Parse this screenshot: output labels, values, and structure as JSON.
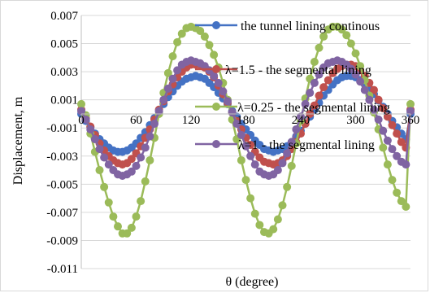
{
  "chart_data": {
    "type": "line",
    "xlabel": "θ (degree)",
    "ylabel": "Displacement, m",
    "xlim": [
      0,
      360
    ],
    "ylim": [
      -0.011,
      0.007
    ],
    "x_ticks": [
      "0",
      "60",
      "120",
      "180",
      "240",
      "300",
      "360"
    ],
    "y_ticks": [
      "0.007",
      "0.005",
      "0.003",
      "0.001",
      "-0.001",
      "-0.003",
      "-0.005",
      "-0.007",
      "-0.009",
      "-0.011"
    ],
    "grid": "horizontal",
    "x_step": 5,
    "series": [
      {
        "name": "the tunnel lining continous",
        "color": "#4472c4",
        "values": [
          0.0,
          -0.0005,
          -0.00095,
          -0.0014,
          -0.0018,
          -0.0021,
          -0.0024,
          -0.0026,
          -0.0027,
          -0.0027,
          -0.0026,
          -0.0024,
          -0.0021,
          -0.0017,
          -0.0013,
          -0.0008,
          -0.0003,
          0.0002,
          0.0007,
          0.0012,
          0.0016,
          0.002,
          0.0023,
          0.0025,
          0.0026,
          0.0027,
          0.0026,
          0.0025,
          0.0022,
          0.0019,
          0.0015,
          0.0011,
          0.0007,
          0.0002,
          -0.0002,
          -0.0007,
          -0.0011,
          -0.0015,
          -0.0019,
          -0.0022,
          -0.0025,
          -0.0026,
          -0.0027,
          -0.0026,
          -0.0025,
          -0.0023,
          -0.002,
          -0.0016,
          -0.0012,
          -0.0007,
          -0.0002,
          0.0003,
          0.0008,
          0.0013,
          0.0017,
          0.0021,
          0.0024,
          0.0026,
          0.0027,
          0.0027,
          0.0026,
          0.0024,
          0.0021,
          0.0018,
          0.0014,
          0.00095,
          0.0005,
          0.0,
          -0.0005,
          -0.00095,
          -0.0014,
          -0.0018,
          0.0
        ]
      },
      {
        "name": "λ=1.5 - the segmental lining",
        "color": "#c0504d",
        "values": [
          0.0003,
          -0.0003,
          -0.0009,
          -0.0015,
          -0.0021,
          -0.0026,
          -0.003,
          -0.0033,
          -0.0035,
          -0.0036,
          -0.0035,
          -0.0032,
          -0.0028,
          -0.0023,
          -0.0017,
          -0.0011,
          -0.0004,
          0.0003,
          0.0009,
          0.0016,
          0.0021,
          0.0026,
          0.003,
          0.0033,
          0.0035,
          0.0035,
          0.0035,
          0.0033,
          0.003,
          0.0026,
          0.002,
          0.0014,
          0.0008,
          0.0001,
          -0.0005,
          -0.0011,
          -0.0017,
          -0.0022,
          -0.0027,
          -0.0031,
          -0.0034,
          -0.0035,
          -0.0036,
          -0.0035,
          -0.0033,
          -0.003,
          -0.0025,
          -0.002,
          -0.0014,
          -0.0007,
          0.0,
          0.0006,
          0.0013,
          0.0019,
          0.0024,
          0.0029,
          0.0032,
          0.0034,
          0.0035,
          0.0035,
          0.0034,
          0.0031,
          0.0027,
          0.0022,
          0.0017,
          0.001,
          0.0004,
          -0.0002,
          -0.0008,
          -0.0014,
          -0.002,
          -0.0024,
          0.0003
        ]
      },
      {
        "name": "λ=0.25 - the segmental lining",
        "color": "#9bbb59",
        "values": [
          0.0007,
          -0.0001,
          -0.0014,
          -0.0027,
          -0.004,
          -0.0052,
          -0.0063,
          -0.0073,
          -0.008,
          -0.0085,
          -0.0085,
          -0.0081,
          -0.0073,
          -0.0062,
          -0.0048,
          -0.0033,
          -0.0017,
          0.0,
          0.0015,
          0.0029,
          0.0041,
          0.0051,
          0.0057,
          0.0061,
          0.0062,
          0.0061,
          0.0059,
          0.0055,
          0.0049,
          0.0042,
          0.0033,
          0.0022,
          0.001,
          -0.0004,
          -0.0018,
          -0.0033,
          -0.0047,
          -0.006,
          -0.0071,
          -0.0079,
          -0.0084,
          -0.0085,
          -0.0082,
          -0.0075,
          -0.0065,
          -0.0052,
          -0.0037,
          -0.0021,
          -0.0005,
          0.0011,
          0.0025,
          0.0037,
          0.0047,
          0.0055,
          0.006,
          0.0062,
          0.0062,
          0.006,
          0.0056,
          0.005,
          0.0043,
          0.0034,
          0.0024,
          0.0013,
          0.0001,
          -0.0011,
          -0.0024,
          -0.0036,
          -0.0047,
          -0.0056,
          -0.0062,
          -0.0066,
          0.0007
        ]
      },
      {
        "name": "λ=1 - the segmental lining",
        "color": "#8064a2",
        "values": [
          0.0002,
          -0.0004,
          -0.0011,
          -0.0018,
          -0.0025,
          -0.0031,
          -0.0036,
          -0.004,
          -0.0043,
          -0.0044,
          -0.0043,
          -0.0041,
          -0.0037,
          -0.0031,
          -0.0024,
          -0.0016,
          -0.0007,
          0.0002,
          0.001,
          0.0018,
          0.0025,
          0.0031,
          0.0035,
          0.0037,
          0.0038,
          0.0037,
          0.0036,
          0.0034,
          0.0031,
          0.0027,
          0.0022,
          0.0016,
          0.0009,
          0.0001,
          -0.0007,
          -0.0015,
          -0.0023,
          -0.003,
          -0.0036,
          -0.0041,
          -0.0043,
          -0.0044,
          -0.0043,
          -0.004,
          -0.0035,
          -0.0028,
          -0.002,
          -0.0011,
          -0.0002,
          0.0007,
          0.0015,
          0.0022,
          0.0028,
          0.0033,
          0.0036,
          0.0037,
          0.0038,
          0.0037,
          0.0035,
          0.0032,
          0.0028,
          0.0023,
          0.0017,
          0.001,
          0.0003,
          -0.0004,
          -0.0012,
          -0.0019,
          -0.0025,
          -0.003,
          -0.0034,
          -0.0036,
          0.0002
        ]
      }
    ],
    "legend_position": "overlaid-right"
  }
}
